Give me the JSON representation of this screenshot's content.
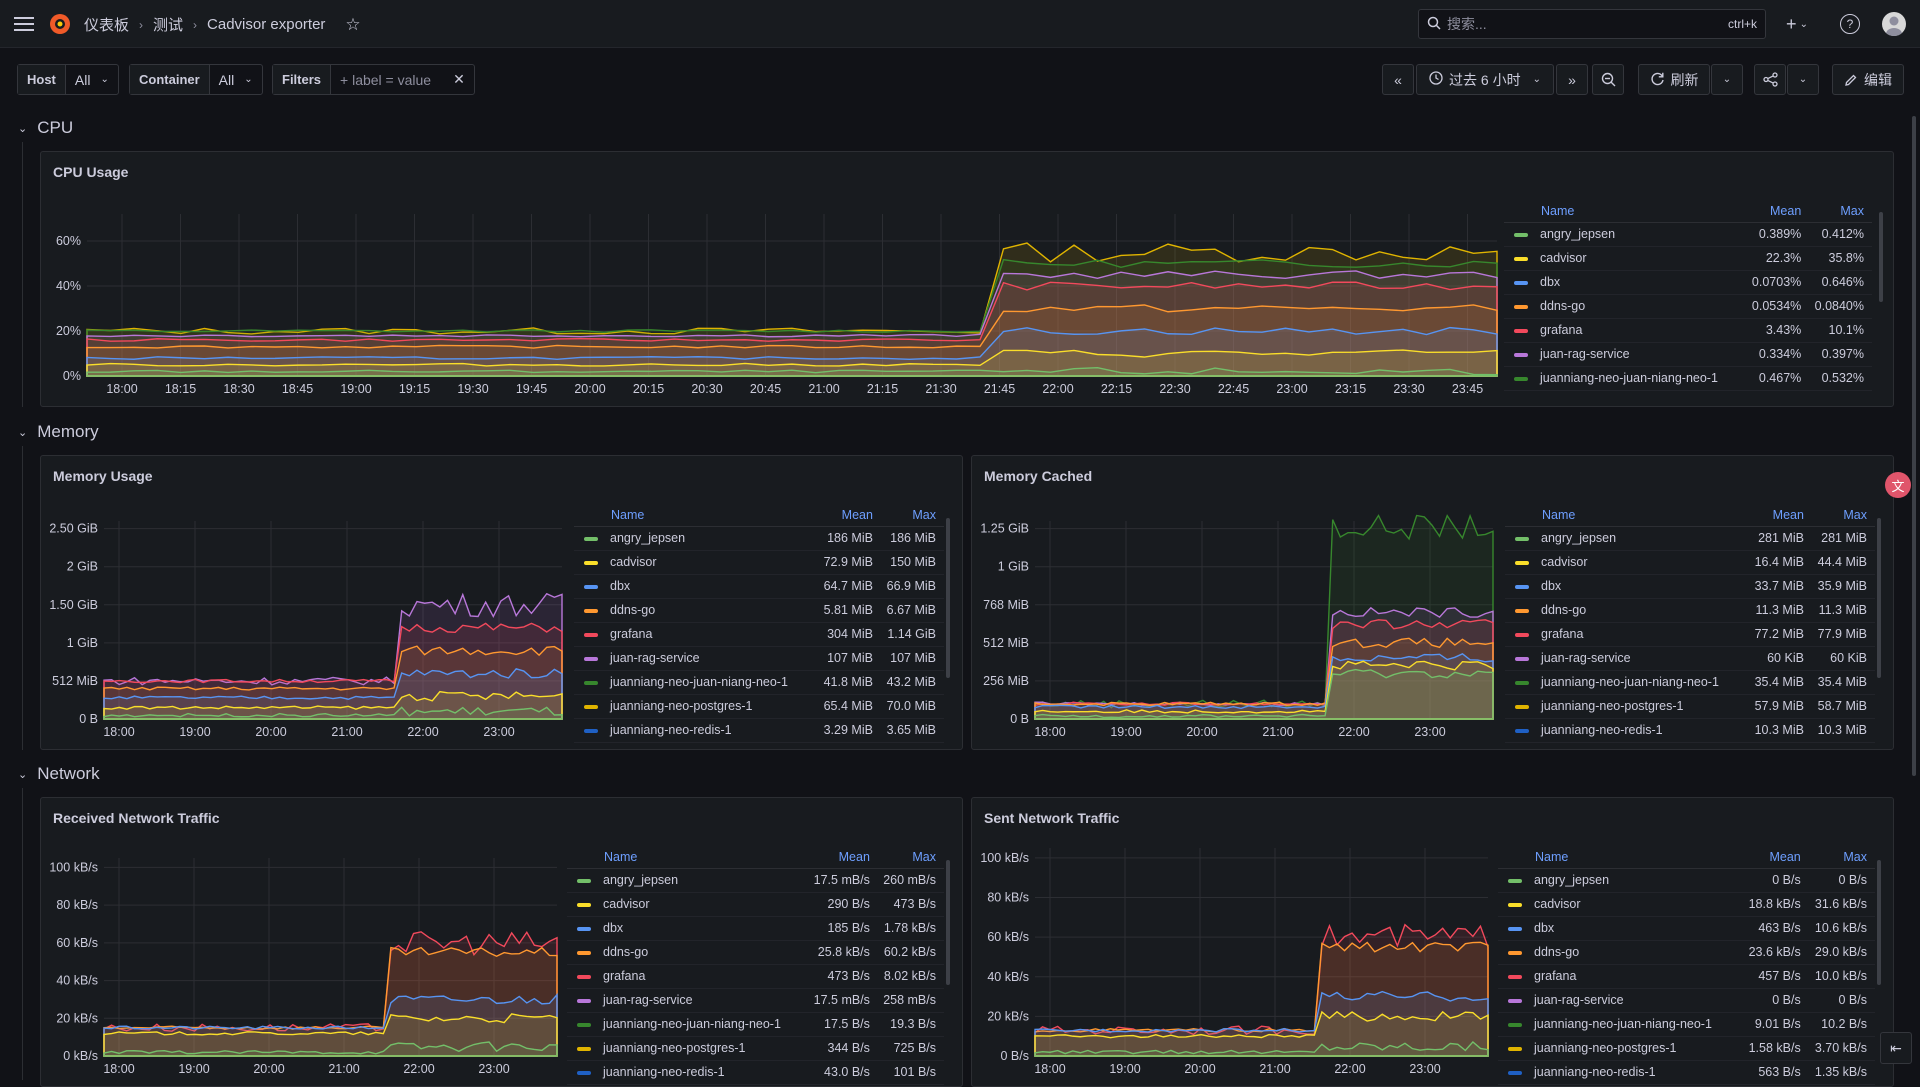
{
  "header": {
    "breadcrumbs": [
      "仪表板",
      "测试",
      "Cadvisor exporter"
    ],
    "search_placeholder": "搜索...",
    "search_shortcut": "ctrl+k",
    "add_label": "+"
  },
  "variables": [
    {
      "label": "Host",
      "value": "All"
    },
    {
      "label": "Container",
      "value": "All"
    }
  ],
  "filters": {
    "label": "Filters",
    "placeholder": "+ label = value"
  },
  "toolbar": {
    "time_range": "过去 6 小时",
    "refresh_label": "刷新",
    "edit_label": "编辑"
  },
  "colors": {
    "angry_jepsen": "#73bf69",
    "cadvisor": "#fade2a",
    "dbx": "#5794f2",
    "ddns-go": "#ff9830",
    "grafana": "#f2495c",
    "juan-rag-service": "#b877d9",
    "juanniang-neo-juan-niang-neo-1": "#37872d",
    "juanniang-neo-postgres-1": "#e0b400",
    "juanniang-neo-redis-1": "#1f60c4"
  },
  "rows": {
    "cpu": "CPU",
    "memory": "Memory",
    "network": "Network"
  },
  "legend_headers": {
    "name": "Name",
    "mean": "Mean",
    "max": "Max"
  },
  "panels": {
    "cpu_usage": {
      "title": "CPU Usage",
      "legend": [
        {
          "name": "angry_jepsen",
          "mean": "0.389%",
          "max": "0.412%"
        },
        {
          "name": "cadvisor",
          "mean": "22.3%",
          "max": "35.8%"
        },
        {
          "name": "dbx",
          "mean": "0.0703%",
          "max": "0.646%"
        },
        {
          "name": "ddns-go",
          "mean": "0.0534%",
          "max": "0.0840%"
        },
        {
          "name": "grafana",
          "mean": "3.43%",
          "max": "10.1%"
        },
        {
          "name": "juan-rag-service",
          "mean": "0.334%",
          "max": "0.397%"
        },
        {
          "name": "juanniang-neo-juan-niang-neo-1",
          "mean": "0.467%",
          "max": "0.532%"
        }
      ]
    },
    "memory_usage": {
      "title": "Memory Usage",
      "legend": [
        {
          "name": "angry_jepsen",
          "mean": "186 MiB",
          "max": "186 MiB"
        },
        {
          "name": "cadvisor",
          "mean": "72.9 MiB",
          "max": "150 MiB"
        },
        {
          "name": "dbx",
          "mean": "64.7 MiB",
          "max": "66.9 MiB"
        },
        {
          "name": "ddns-go",
          "mean": "5.81 MiB",
          "max": "6.67 MiB"
        },
        {
          "name": "grafana",
          "mean": "304 MiB",
          "max": "1.14 GiB"
        },
        {
          "name": "juan-rag-service",
          "mean": "107 MiB",
          "max": "107 MiB"
        },
        {
          "name": "juanniang-neo-juan-niang-neo-1",
          "mean": "41.8 MiB",
          "max": "43.2 MiB"
        },
        {
          "name": "juanniang-neo-postgres-1",
          "mean": "65.4 MiB",
          "max": "70.0 MiB"
        },
        {
          "name": "juanniang-neo-redis-1",
          "mean": "3.29 MiB",
          "max": "3.65 MiB"
        }
      ]
    },
    "memory_cached": {
      "title": "Memory Cached",
      "legend": [
        {
          "name": "angry_jepsen",
          "mean": "281 MiB",
          "max": "281 MiB"
        },
        {
          "name": "cadvisor",
          "mean": "16.4 MiB",
          "max": "44.4 MiB"
        },
        {
          "name": "dbx",
          "mean": "33.7 MiB",
          "max": "35.9 MiB"
        },
        {
          "name": "ddns-go",
          "mean": "11.3 MiB",
          "max": "11.3 MiB"
        },
        {
          "name": "grafana",
          "mean": "77.2 MiB",
          "max": "77.9 MiB"
        },
        {
          "name": "juan-rag-service",
          "mean": "60 KiB",
          "max": "60 KiB"
        },
        {
          "name": "juanniang-neo-juan-niang-neo-1",
          "mean": "35.4 MiB",
          "max": "35.4 MiB"
        },
        {
          "name": "juanniang-neo-postgres-1",
          "mean": "57.9 MiB",
          "max": "58.7 MiB"
        },
        {
          "name": "juanniang-neo-redis-1",
          "mean": "10.3 MiB",
          "max": "10.3 MiB"
        }
      ]
    },
    "received_traffic": {
      "title": "Received Network Traffic",
      "legend": [
        {
          "name": "angry_jepsen",
          "mean": "17.5 mB/s",
          "max": "260 mB/s"
        },
        {
          "name": "cadvisor",
          "mean": "290 B/s",
          "max": "473 B/s"
        },
        {
          "name": "dbx",
          "mean": "185 B/s",
          "max": "1.78 kB/s"
        },
        {
          "name": "ddns-go",
          "mean": "25.8 kB/s",
          "max": "60.2 kB/s"
        },
        {
          "name": "grafana",
          "mean": "473 B/s",
          "max": "8.02 kB/s"
        },
        {
          "name": "juan-rag-service",
          "mean": "17.5 mB/s",
          "max": "258 mB/s"
        },
        {
          "name": "juanniang-neo-juan-niang-neo-1",
          "mean": "17.5 B/s",
          "max": "19.3 B/s"
        },
        {
          "name": "juanniang-neo-postgres-1",
          "mean": "344 B/s",
          "max": "725 B/s"
        },
        {
          "name": "juanniang-neo-redis-1",
          "mean": "43.0 B/s",
          "max": "101 B/s"
        }
      ]
    },
    "sent_traffic": {
      "title": "Sent Network Traffic",
      "legend": [
        {
          "name": "angry_jepsen",
          "mean": "0 B/s",
          "max": "0 B/s"
        },
        {
          "name": "cadvisor",
          "mean": "18.8 kB/s",
          "max": "31.6 kB/s"
        },
        {
          "name": "dbx",
          "mean": "463 B/s",
          "max": "10.6 kB/s"
        },
        {
          "name": "ddns-go",
          "mean": "23.6 kB/s",
          "max": "29.0 kB/s"
        },
        {
          "name": "grafana",
          "mean": "457 B/s",
          "max": "10.0 kB/s"
        },
        {
          "name": "juan-rag-service",
          "mean": "0 B/s",
          "max": "0 B/s"
        },
        {
          "name": "juanniang-neo-juan-niang-neo-1",
          "mean": "9.01 B/s",
          "max": "10.2 B/s"
        },
        {
          "name": "juanniang-neo-postgres-1",
          "mean": "1.58 kB/s",
          "max": "3.70 kB/s"
        },
        {
          "name": "juanniang-neo-redis-1",
          "mean": "563 B/s",
          "max": "1.35 kB/s"
        }
      ]
    }
  },
  "chart_data": [
    {
      "type": "area",
      "title": "CPU Usage",
      "x_ticks": [
        "18:00",
        "18:15",
        "18:30",
        "18:45",
        "19:00",
        "19:15",
        "19:30",
        "19:45",
        "20:00",
        "20:15",
        "20:30",
        "20:45",
        "21:00",
        "21:15",
        "21:30",
        "21:45",
        "22:00",
        "22:15",
        "22:30",
        "22:45",
        "23:00",
        "23:15",
        "23:30",
        "23:45"
      ],
      "y_ticks": [
        "0%",
        "20%",
        "40%",
        "60%"
      ],
      "ylim": [
        0,
        72
      ],
      "step_fraction": 0.635,
      "stacked_levels_before": [
        2,
        5,
        8,
        13,
        16,
        18,
        20
      ],
      "stacked_levels_after": [
        2,
        10,
        20,
        30,
        40,
        45,
        50,
        55
      ],
      "series": [
        "angry_jepsen",
        "cadvisor",
        "dbx",
        "ddns-go",
        "grafana",
        "juan-rag-service",
        "juanniang-neo-juan-niang-neo-1"
      ]
    },
    {
      "type": "area",
      "title": "Memory Usage",
      "x_ticks": [
        "18:00",
        "19:00",
        "20:00",
        "21:00",
        "22:00",
        "23:00"
      ],
      "y_ticks": [
        "0 B",
        "512 MiB",
        "1 GiB",
        "1.50 GiB",
        "2 GiB",
        "2.50 GiB"
      ],
      "ylim": [
        0,
        2.6
      ],
      "step_fraction": 0.635,
      "stacked_levels_before": [
        0.05,
        0.15,
        0.28,
        0.4,
        0.5
      ],
      "stacked_levels_after": [
        0.1,
        0.3,
        0.6,
        0.9,
        1.2,
        1.5
      ],
      "series": [
        "angry_jepsen",
        "cadvisor",
        "dbx",
        "ddns-go",
        "grafana",
        "juan-rag-service",
        "juanniang-neo-juan-niang-neo-1",
        "juanniang-neo-postgres-1",
        "juanniang-neo-redis-1"
      ]
    },
    {
      "type": "area",
      "title": "Memory Cached",
      "x_ticks": [
        "18:00",
        "19:00",
        "20:00",
        "21:00",
        "22:00",
        "23:00"
      ],
      "y_ticks": [
        "0 B",
        "256 MiB",
        "512 MiB",
        "768 MiB",
        "1 GiB",
        "1.25 GiB"
      ],
      "ylim": [
        0,
        1.3
      ],
      "step_fraction": 0.635,
      "stacked_levels_before": [
        0.02,
        0.05,
        0.08,
        0.1
      ],
      "stacked_levels_after": [
        0.3,
        0.35,
        0.4,
        0.5,
        0.62,
        0.7,
        1.26
      ],
      "series": [
        "angry_jepsen",
        "cadvisor",
        "dbx",
        "ddns-go",
        "grafana",
        "juan-rag-service",
        "juanniang-neo-juan-niang-neo-1",
        "juanniang-neo-postgres-1",
        "juanniang-neo-redis-1"
      ]
    },
    {
      "type": "area",
      "title": "Received Network Traffic",
      "x_ticks": [
        "18:00",
        "19:00",
        "20:00",
        "21:00",
        "22:00",
        "23:00"
      ],
      "y_ticks": [
        "0 kB/s",
        "20 kB/s",
        "40 kB/s",
        "60 kB/s",
        "80 kB/s",
        "100 kB/s"
      ],
      "ylim": [
        0,
        105
      ],
      "step_fraction": 0.63,
      "stacked_levels_before": [
        2,
        12,
        15
      ],
      "stacked_levels_after": [
        5,
        20,
        30,
        55,
        60
      ],
      "series": [
        "angry_jepsen",
        "cadvisor",
        "dbx",
        "ddns-go",
        "grafana",
        "juan-rag-service",
        "juanniang-neo-juan-niang-neo-1",
        "juanniang-neo-postgres-1",
        "juanniang-neo-redis-1"
      ]
    },
    {
      "type": "area",
      "title": "Sent Network Traffic",
      "x_ticks": [
        "18:00",
        "19:00",
        "20:00",
        "21:00",
        "22:00",
        "23:00"
      ],
      "y_ticks": [
        "0 B/s",
        "20 kB/s",
        "40 kB/s",
        "60 kB/s",
        "80 kB/s",
        "100 kB/s"
      ],
      "ylim": [
        0,
        105
      ],
      "step_fraction": 0.63,
      "stacked_levels_before": [
        2,
        10,
        13
      ],
      "stacked_levels_after": [
        5,
        20,
        30,
        55,
        60
      ],
      "series": [
        "angry_jepsen",
        "cadvisor",
        "dbx",
        "ddns-go",
        "grafana",
        "juan-rag-service",
        "juanniang-neo-juan-niang-neo-1",
        "juanniang-neo-postgres-1",
        "juanniang-neo-redis-1"
      ]
    }
  ]
}
